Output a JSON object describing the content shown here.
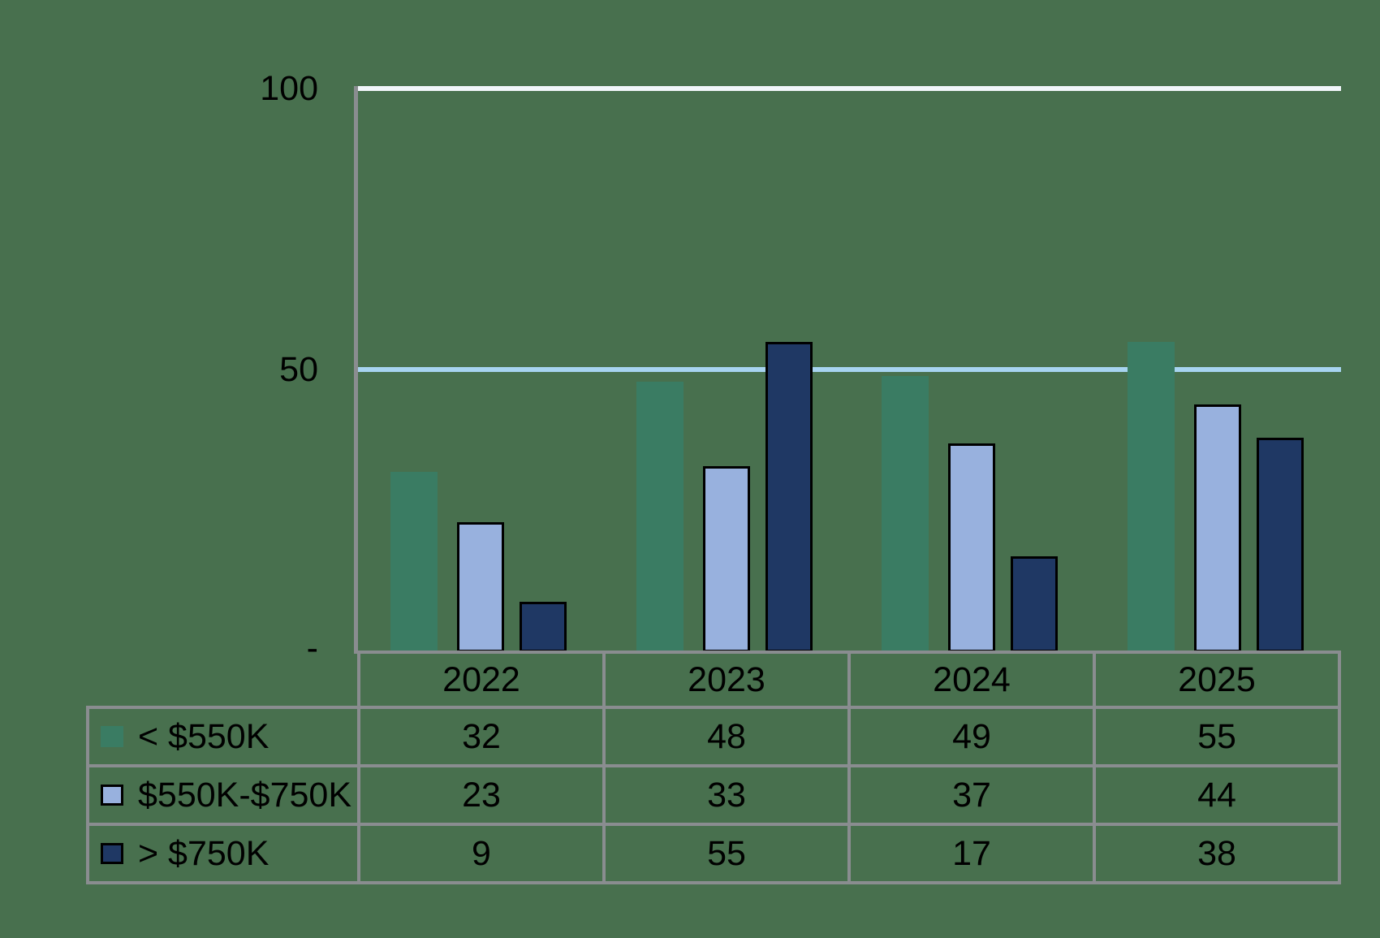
{
  "chart_data": {
    "type": "bar",
    "title": "",
    "xlabel": "",
    "ylabel": "",
    "ylim": [
      0,
      100
    ],
    "grid": true,
    "legend_position": "table-left",
    "categories": [
      "2022",
      "2023",
      "2024",
      "2025"
    ],
    "series": [
      {
        "name": "< $550K",
        "values": [
          32,
          48,
          49,
          55
        ],
        "color": "#3A7C63",
        "outlined": false
      },
      {
        "name": "$550K-$750K",
        "values": [
          23,
          33,
          37,
          44
        ],
        "color": "#98B1DE",
        "outlined": true
      },
      {
        "name": "> $750K",
        "values": [
          9,
          55,
          17,
          38
        ],
        "color": "#1F3864",
        "outlined": true
      }
    ],
    "yticks": [
      {
        "value": 100,
        "label": "100"
      },
      {
        "value": 50,
        "label": "50"
      },
      {
        "value": 0,
        "label": "-"
      }
    ]
  },
  "style": {
    "bg": "#48704E",
    "axis": "#8A8D90",
    "grid50": "#A7D4F0",
    "grid100": "#F1F6FA",
    "text": "#000000",
    "bar_outline": "#000000"
  }
}
